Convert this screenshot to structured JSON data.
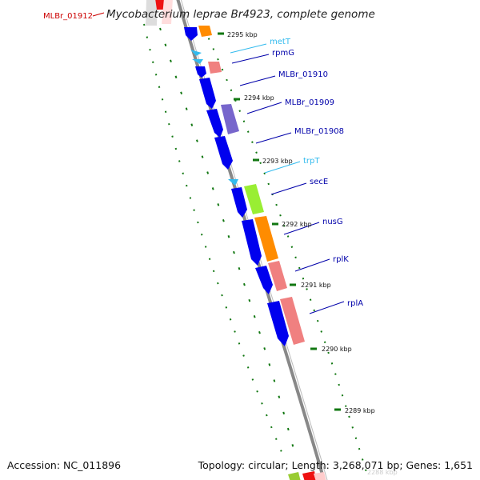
{
  "title": "Mycobacterium leprae Br4923, complete genome",
  "highlight_locus": {
    "label": "MLBr_01912",
    "color": "#cc0000"
  },
  "footer": {
    "accession": "Accession: NC_011896",
    "stats": "Topology: circular; Length: 3,268,071 bp; Genes: 1,651"
  },
  "scale_labels": [
    "2295 kbp",
    "2294 kbp",
    "2293 kbp",
    "2292 kbp",
    "2291 kbp",
    "2290 kbp",
    "2289 kbp",
    "2288 kbp"
  ],
  "gene_labels": [
    {
      "label": "metT",
      "color": "#33bbee",
      "kind": "tRNA"
    },
    {
      "label": "rpmG",
      "color": "#0000aa",
      "kind": "CDS"
    },
    {
      "label": "MLBr_01910",
      "color": "#0000aa",
      "kind": "CDS"
    },
    {
      "label": "MLBr_01909",
      "color": "#0000aa",
      "kind": "CDS"
    },
    {
      "label": "MLBr_01908",
      "color": "#0000aa",
      "kind": "CDS"
    },
    {
      "label": "trpT",
      "color": "#33bbee",
      "kind": "tRNA"
    },
    {
      "label": "secE",
      "color": "#0000aa",
      "kind": "CDS"
    },
    {
      "label": "nusG",
      "color": "#0000aa",
      "kind": "CDS"
    },
    {
      "label": "rplK",
      "color": "#0000aa",
      "kind": "CDS"
    },
    {
      "label": "rplA",
      "color": "#0000aa",
      "kind": "CDS"
    }
  ],
  "colors": {
    "cds": "#0000ee",
    "trna": "#33bbee",
    "backbone": "#888888",
    "gc_skew": "#117711",
    "orange_class": "#ff8c00",
    "pink_class": "#f08080",
    "purple_class": "#7766cc",
    "green_class": "#99ee33"
  }
}
